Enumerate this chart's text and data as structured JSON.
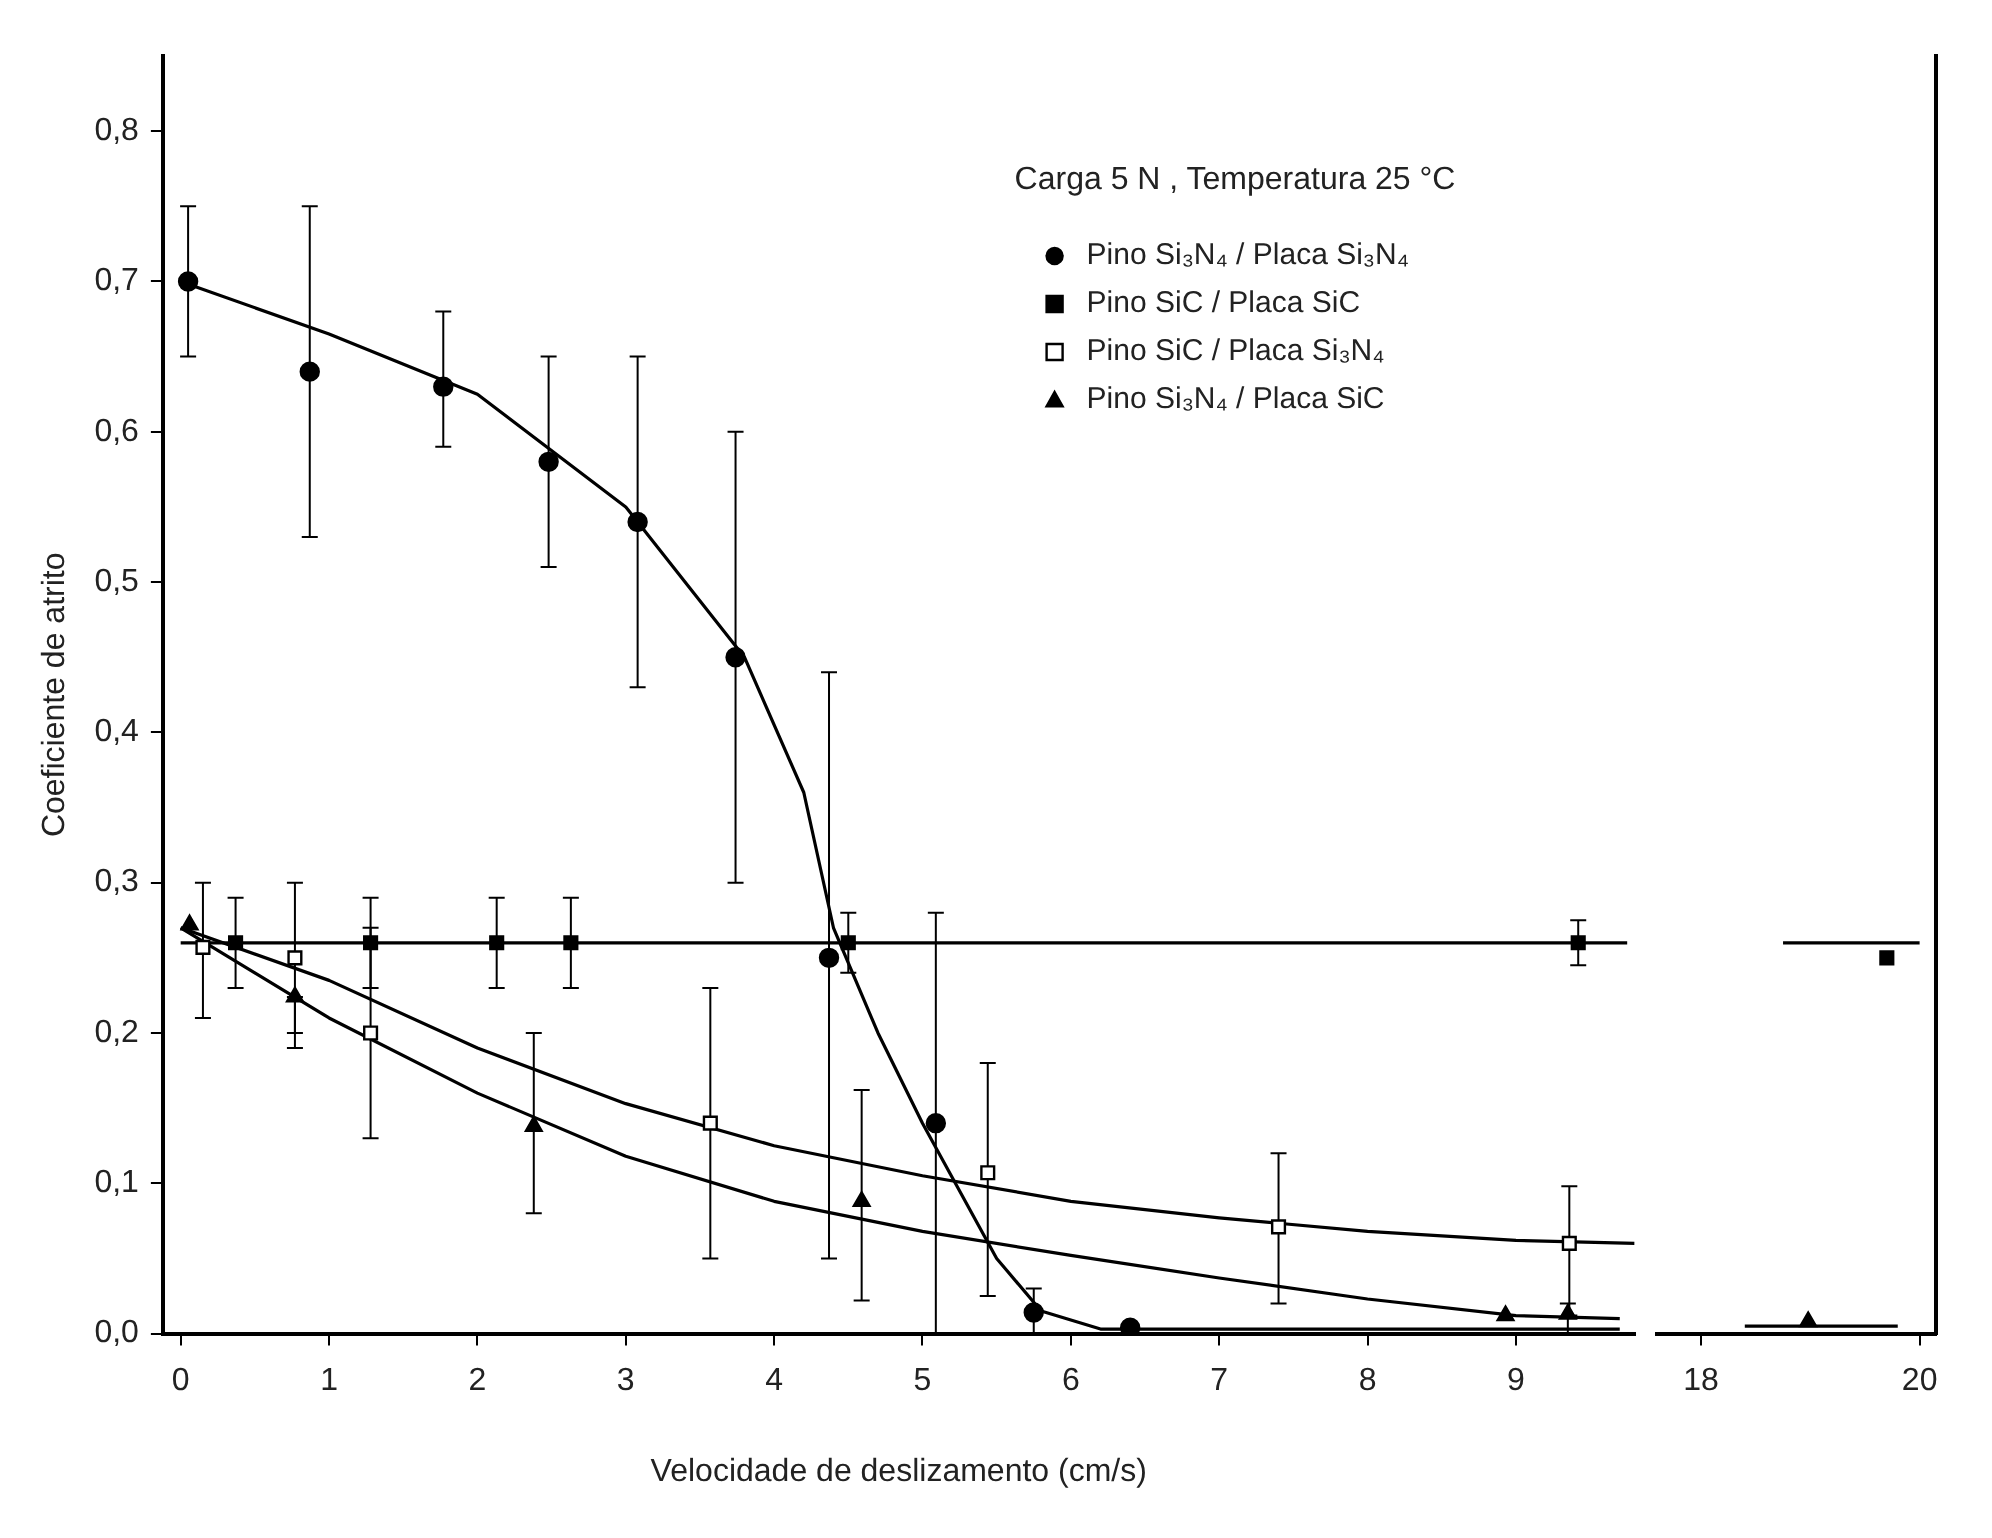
{
  "chart_data": [
    {
      "type": "scatter",
      "xlabel": "Velocidade de deslizamento (cm/s)",
      "ylabel": "Coeficiente de atrito",
      "annotations": [
        "Carga 5 N , Temperatura 25 °C"
      ],
      "xlim": [
        -0.12,
        9.8
      ],
      "xticks": [
        0,
        1,
        2,
        3,
        4,
        5,
        6,
        7,
        8,
        9
      ],
      "ylim": [
        0,
        0.85
      ],
      "yticks": [
        {
          "value": 0,
          "label": "0,0"
        },
        {
          "value": 0.1,
          "label": "0,1"
        },
        {
          "value": 0.2,
          "label": "0,2"
        },
        {
          "value": 0.3,
          "label": "0,3"
        },
        {
          "value": 0.4,
          "label": "0,4"
        },
        {
          "value": 0.5,
          "label": "0,5"
        },
        {
          "value": 0.6,
          "label": "0,6"
        },
        {
          "value": 0.7,
          "label": "0,7"
        },
        {
          "value": 0.8,
          "label": "0,8"
        }
      ],
      "legend": "top right",
      "series": [
        {
          "name": "Pino Si₃N₄ / Placa Si₃N₄",
          "color": "#000000",
          "marker": "circle",
          "x": [
            0.05,
            0.87,
            1.77,
            2.48,
            3.08,
            3.74,
            4.37,
            5.09,
            5.75,
            6.4
          ],
          "values": [
            0.7,
            0.64,
            0.63,
            0.58,
            0.54,
            0.45,
            0.25,
            0.14,
            0.014,
            0.004
          ],
          "errors": [
            [
              0.65,
              0.75
            ],
            [
              0.53,
              0.75
            ],
            [
              0.59,
              0.68
            ],
            [
              0.51,
              0.65
            ],
            [
              0.43,
              0.65
            ],
            [
              0.3,
              0.6
            ],
            [
              0.05,
              0.44
            ],
            [
              0,
              0.28
            ],
            [
              0,
              0.03
            ],
            null
          ]
        },
        {
          "name": "Pino SiC / Placa SiC",
          "color": "#000000",
          "marker": "square",
          "x": [
            0.37,
            1.28,
            2.13,
            2.63,
            4.5,
            9.42
          ],
          "values": [
            0.26,
            0.26,
            0.26,
            0.26,
            0.26,
            0.26
          ],
          "errors": [
            0.03,
            0.03,
            0.03,
            0.03,
            0.02,
            0.015
          ]
        },
        {
          "name": "Pino SiC / Placa Si₃N₄",
          "color": "#ffffff",
          "marker": "square",
          "x": [
            0.15,
            0.77,
            1.28,
            3.57,
            5.44,
            7.4,
            9.36
          ],
          "values": [
            0.257,
            0.25,
            0.2,
            0.14,
            0.107,
            0.071,
            0.06
          ],
          "errors": [
            [
              0.21,
              0.3
            ],
            [
              0.2,
              0.3
            ],
            [
              0.13,
              0.27
            ],
            [
              0.05,
              0.23
            ],
            [
              0.025,
              0.18
            ],
            [
              0.02,
              0.12
            ],
            [
              0.012,
              0.098
            ]
          ]
        },
        {
          "name": "Pino Si₃N₄ / Placa SiC",
          "color": "#000000",
          "marker": "triangle",
          "x": [
            0.06,
            0.77,
            2.38,
            4.59,
            8.93,
            9.35
          ],
          "values": [
            0.272,
            0.224,
            0.138,
            0.088,
            0.012,
            0.013
          ],
          "errors": [
            null,
            [
              0.19,
              0.224
            ],
            [
              0.08,
              0.2
            ],
            [
              0.022,
              0.162
            ],
            null,
            [
              0,
              0.02
            ]
          ]
        },
        {
          "type": "line",
          "color": "#000000",
          "marker": "none",
          "x": [
            0,
            1,
            2,
            3,
            3.8,
            4.2,
            4.4,
            4.7,
            5.0,
            5.5,
            5.8,
            6.2,
            9.7
          ],
          "values": [
            0.7,
            0.665,
            0.625,
            0.55,
            0.45,
            0.36,
            0.27,
            0.2,
            0.14,
            0.05,
            0.015,
            0.003,
            0.003
          ]
        },
        {
          "type": "line",
          "color": "#000000",
          "marker": "none",
          "x": [
            0,
            9.75
          ],
          "values": [
            0.26,
            0.26
          ]
        },
        {
          "type": "line",
          "color": "#000000",
          "marker": "none",
          "x": [
            0,
            1,
            2,
            3,
            4,
            5,
            6,
            7,
            8,
            9,
            9.8
          ],
          "values": [
            0.27,
            0.235,
            0.19,
            0.153,
            0.125,
            0.105,
            0.088,
            0.077,
            0.068,
            0.062,
            0.06
          ]
        },
        {
          "type": "line",
          "color": "#000000",
          "marker": "none",
          "x": [
            0,
            1,
            2,
            3,
            4,
            5,
            6,
            7,
            8,
            9,
            9.7
          ],
          "values": [
            0.27,
            0.21,
            0.16,
            0.118,
            0.088,
            0.068,
            0.052,
            0.037,
            0.023,
            0.012,
            0.01
          ]
        }
      ]
    },
    {
      "type": "scatter",
      "tick_labels": "x",
      "xlim": [
        17.6,
        20.15
      ],
      "xticks": [
        18,
        20
      ],
      "ylim": [
        0,
        0.85
      ],
      "series": [
        {
          "color": "#000000",
          "marker": "square",
          "x": [
            19.7
          ],
          "values": [
            0.25
          ]
        },
        {
          "color": "#000000",
          "marker": "triangle",
          "x": [
            18.98
          ],
          "values": [
            0.008
          ]
        },
        {
          "type": "line",
          "color": "#000000",
          "marker": "none",
          "x": [
            18.75,
            20
          ],
          "values": [
            0.26,
            0.26
          ]
        },
        {
          "type": "line",
          "color": "#000000",
          "marker": "none",
          "x": [
            18.4,
            19.8
          ],
          "values": [
            0.005,
            0.005
          ]
        }
      ]
    }
  ]
}
